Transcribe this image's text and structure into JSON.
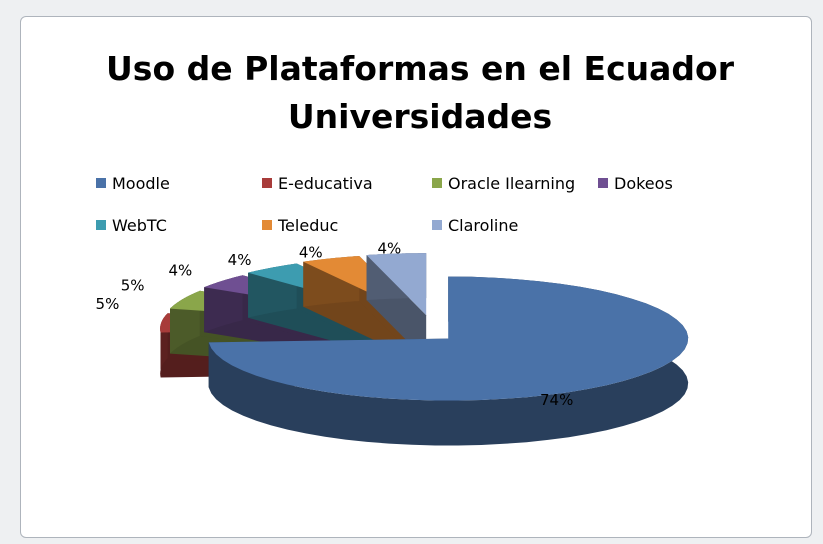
{
  "chart_data": {
    "type": "pie3d",
    "title": [
      "Uso de Plataformas  en el Ecuador",
      "Universidades"
    ],
    "categories": [
      "Moodle",
      "E-educativa",
      "Oracle Ilearning",
      "Dokeos",
      "WebTC",
      "Teleduc",
      "Claroline"
    ],
    "values": [
      74,
      5,
      5,
      4,
      4,
      4,
      4
    ],
    "value_labels": [
      "74%",
      "5%",
      "5%",
      "4%",
      "4%",
      "4%",
      "4%"
    ],
    "colors": [
      "#4a72a8",
      "#a83c3a",
      "#8aa64a",
      "#6f4f92",
      "#3d9cb0",
      "#e38a35",
      "#93a9d1"
    ]
  }
}
